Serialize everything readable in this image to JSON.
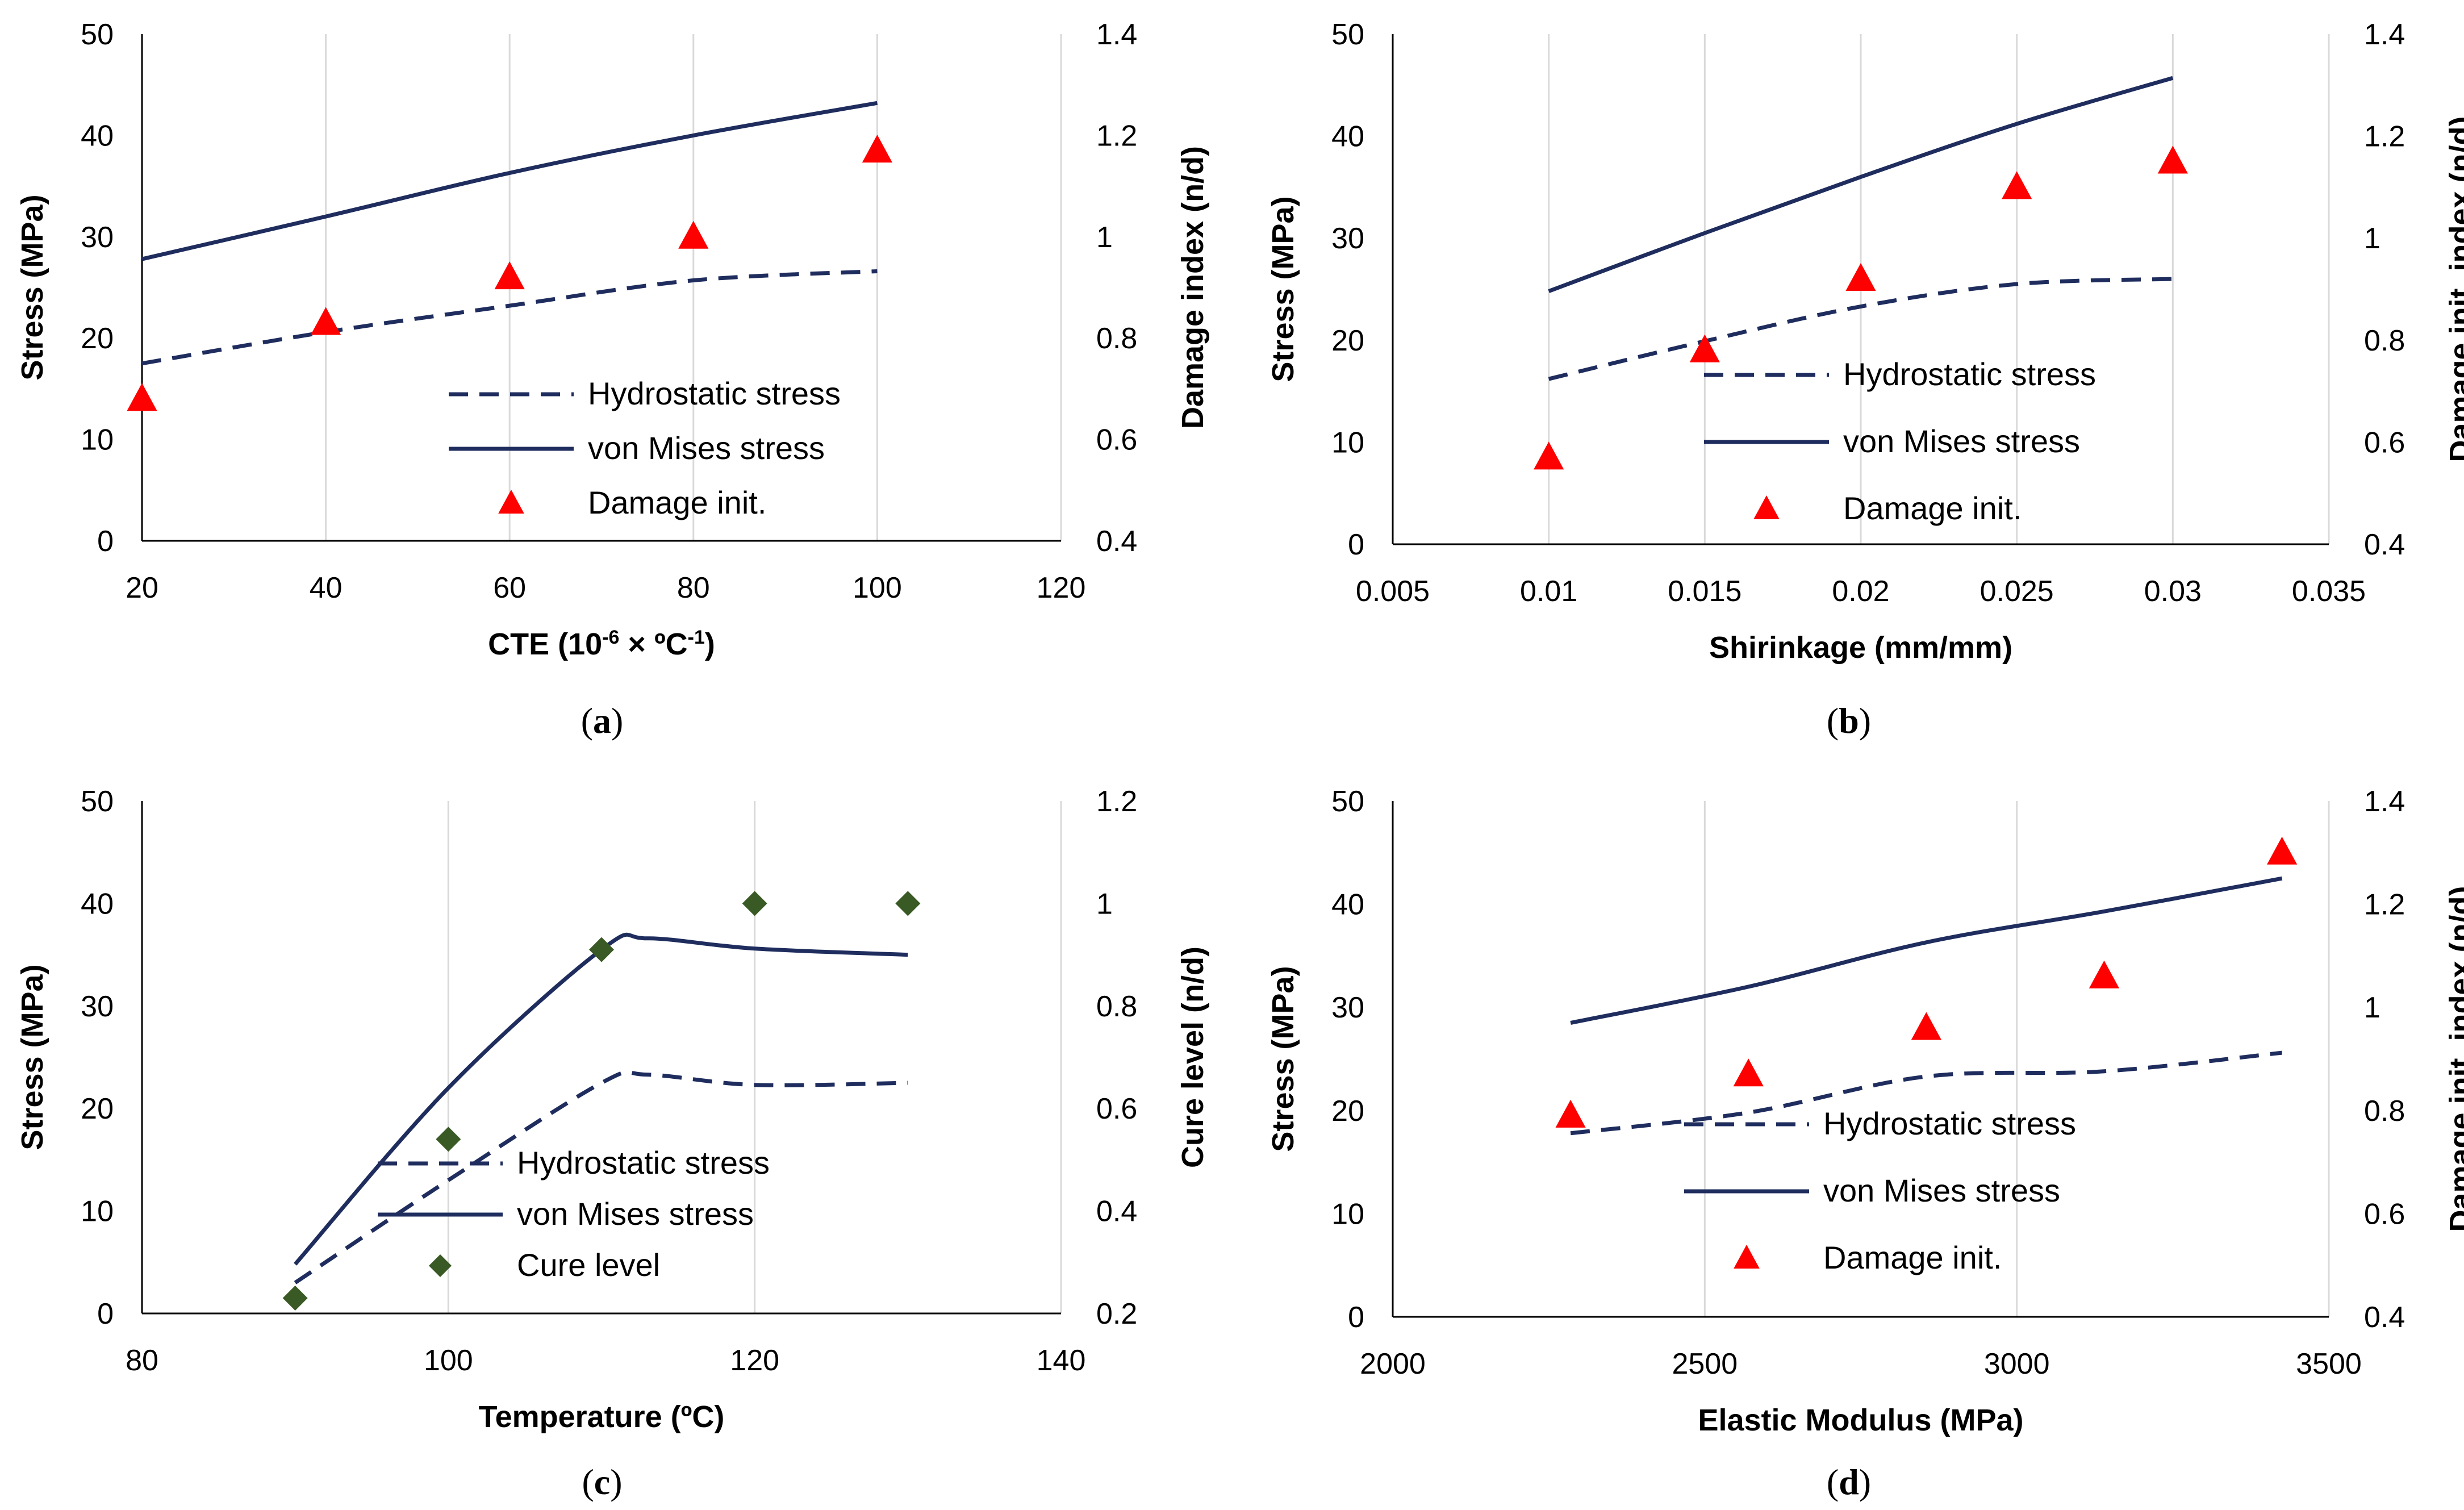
{
  "chart_data": [
    {
      "type": "line",
      "panel_label": "a",
      "xlabel_parts": [
        "CTE (10",
        "-6",
        " × ºC",
        "-1",
        ")"
      ],
      "ylabel": "Stress (MPa)",
      "y2label": "Damage index (n/d)",
      "xlim": [
        20,
        120
      ],
      "xticks": [
        "20",
        "40",
        "60",
        "80",
        "100",
        "120"
      ],
      "ylim": [
        0,
        50
      ],
      "yticks": [
        "0",
        "10",
        "20",
        "30",
        "40",
        "50"
      ],
      "y2lim": [
        0.4,
        1.4
      ],
      "y2ticks": [
        "0.4",
        "0.6",
        "0.8",
        "1",
        "1.2",
        "1.4"
      ],
      "grid": "vertical",
      "legend_position": "bottom-right",
      "series": [
        {
          "name": "Hydrostatic stress",
          "style": "dashed",
          "color": "#1f2d5e",
          "axis": "left",
          "x": [
            20,
            40,
            60,
            80,
            100
          ],
          "y": [
            17.5,
            20.6,
            23.2,
            25.7,
            26.6
          ]
        },
        {
          "name": "von Mises stress",
          "style": "solid",
          "color": "#1f2d5e",
          "axis": "left",
          "x": [
            20,
            40,
            60,
            80,
            100
          ],
          "y": [
            27.8,
            32.0,
            36.3,
            40.0,
            43.2
          ]
        },
        {
          "name": "Damage init.",
          "style": "triangle",
          "color": "#ff0000",
          "axis": "right",
          "x": [
            20,
            40,
            60,
            80,
            100
          ],
          "y": [
            0.68,
            0.83,
            0.92,
            1.0,
            1.17
          ]
        }
      ]
    },
    {
      "type": "line",
      "panel_label": "b",
      "xlabel_parts": [
        "Shirinkage (mm/mm)"
      ],
      "ylabel": "Stress (MPa)",
      "y2label": "Damage init. index (n/d)",
      "xlim": [
        0.005,
        0.035
      ],
      "xticks": [
        "0.005",
        "0.01",
        "0.015",
        "0.02",
        "0.025",
        "0.03",
        "0.035"
      ],
      "ylim": [
        0,
        50
      ],
      "yticks": [
        "0",
        "10",
        "20",
        "30",
        "40",
        "50"
      ],
      "y2lim": [
        0.4,
        1.4
      ],
      "y2ticks": [
        "0.4",
        "0.6",
        "0.8",
        "1",
        "1.2",
        "1.4"
      ],
      "grid": "vertical",
      "legend_position": "bottom-right",
      "series": [
        {
          "name": "Hydrostatic stress",
          "style": "dashed",
          "color": "#1f2d5e",
          "axis": "left",
          "x": [
            0.01,
            0.015,
            0.02,
            0.025,
            0.03
          ],
          "y": [
            16.2,
            19.9,
            23.3,
            25.5,
            26.0
          ]
        },
        {
          "name": "von Mises stress",
          "style": "solid",
          "color": "#1f2d5e",
          "axis": "left",
          "x": [
            0.01,
            0.015,
            0.02,
            0.025,
            0.03
          ],
          "y": [
            24.8,
            30.5,
            36.0,
            41.2,
            45.7
          ]
        },
        {
          "name": "Damage init.",
          "style": "triangle",
          "color": "#ff0000",
          "axis": "right",
          "x": [
            0.01,
            0.015,
            0.02,
            0.025,
            0.03
          ],
          "y": [
            0.57,
            0.78,
            0.92,
            1.1,
            1.15
          ]
        }
      ]
    },
    {
      "type": "line",
      "panel_label": "c",
      "xlabel_parts": [
        "Temperature (ºC)"
      ],
      "ylabel": "Stress (MPa)",
      "y2label": "Cure level (n/d)",
      "xlim": [
        80,
        140
      ],
      "xticks": [
        "80",
        "100",
        "120",
        "140"
      ],
      "ylim": [
        0,
        50
      ],
      "yticks": [
        "0",
        "10",
        "20",
        "30",
        "40",
        "50"
      ],
      "y2lim": [
        0.2,
        1.2
      ],
      "y2ticks": [
        "0.2",
        "0.4",
        "0.6",
        "0.8",
        "1",
        "1.2"
      ],
      "grid": "vertical",
      "legend_position": "bottom-right",
      "series": [
        {
          "name": "Hydrostatic stress",
          "style": "dashed",
          "color": "#1f2d5e",
          "axis": "left",
          "x": [
            90,
            100,
            110,
            113,
            120,
            130
          ],
          "y": [
            3.0,
            13.0,
            22.5,
            23.3,
            22.3,
            22.5
          ]
        },
        {
          "name": "von Mises stress",
          "style": "solid",
          "color": "#1f2d5e",
          "axis": "left",
          "x": [
            90,
            100,
            110,
            113,
            120,
            130
          ],
          "y": [
            4.8,
            22.0,
            35.5,
            36.6,
            35.6,
            35.0
          ]
        },
        {
          "name": "Cure level",
          "style": "diamond",
          "color": "#3a5a25",
          "axis": "right",
          "x": [
            90,
            100,
            110,
            120,
            130
          ],
          "y": [
            0.23,
            0.54,
            0.91,
            1.0,
            1.0
          ]
        }
      ]
    },
    {
      "type": "line",
      "panel_label": "d",
      "xlabel_parts": [
        "Elastic Modulus (MPa)"
      ],
      "ylabel": "Stress (MPa)",
      "y2label": "Damage init. index (n/d)",
      "xlim": [
        2000,
        3500
      ],
      "xticks": [
        "2000",
        "2500",
        "3000",
        "3500"
      ],
      "ylim": [
        0,
        50
      ],
      "yticks": [
        "0",
        "10",
        "20",
        "30",
        "40",
        "50"
      ],
      "y2lim": [
        0.4,
        1.4
      ],
      "y2ticks": [
        "0.4",
        "0.6",
        "0.8",
        "1",
        "1.2",
        "1.4"
      ],
      "grid": "vertical",
      "legend_position": "bottom-right",
      "series": [
        {
          "name": "Hydrostatic stress",
          "style": "dashed",
          "color": "#1f2d5e",
          "axis": "left",
          "x": [
            2285,
            2570,
            2855,
            3140,
            3425
          ],
          "y": [
            17.8,
            19.8,
            23.3,
            23.8,
            25.6
          ]
        },
        {
          "name": "von Mises stress",
          "style": "solid",
          "color": "#1f2d5e",
          "axis": "left",
          "x": [
            2285,
            2570,
            2855,
            3140,
            3425
          ],
          "y": [
            28.5,
            32.0,
            36.3,
            39.3,
            42.5
          ]
        },
        {
          "name": "Damage init.",
          "style": "triangle",
          "color": "#ff0000",
          "axis": "right",
          "x": [
            2285,
            2570,
            2855,
            3140,
            3425
          ],
          "y": [
            0.79,
            0.87,
            0.96,
            1.06,
            1.3
          ]
        }
      ]
    }
  ]
}
